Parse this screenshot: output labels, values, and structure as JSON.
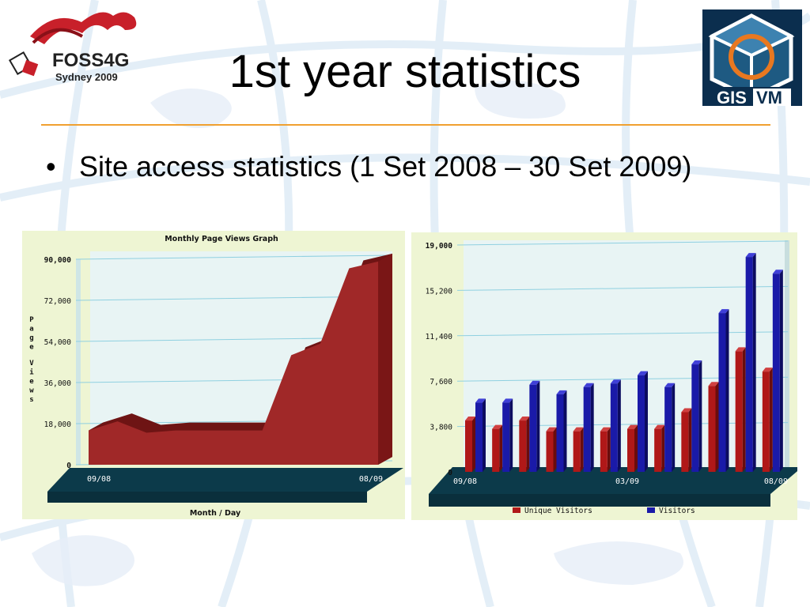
{
  "slide": {
    "title": "1st year statistics",
    "bullet": "Site access statistics (1 Set 2008 – 30 Set 2009)"
  },
  "logos": {
    "left": {
      "line1": "FOSS4G",
      "line2": "Sydney 2009"
    },
    "right": {
      "text1": "GIS",
      "text2": "VM"
    }
  },
  "colors": {
    "accent_rule": "#f0a030",
    "chart_bg": "#eef5d3",
    "plot_bg": "#e8f4f4",
    "floor": "#0c3a4a",
    "area_fill": "#a02828",
    "unique_color": "#b01818",
    "visitors_color": "#1a1aa8"
  },
  "chart_data": [
    {
      "type": "area",
      "title": "Monthly Page Views Graph",
      "xlabel": "Month / Day",
      "ylabel": "Page Views",
      "ylim": [
        0,
        90000
      ],
      "yticks": [
        "90,000",
        "72,000",
        "54,000",
        "36,000",
        "18,000",
        "0"
      ],
      "ytick_values": [
        90000,
        72000,
        54000,
        36000,
        18000,
        0
      ],
      "x_tick_labels": [
        "09/08",
        "08/09"
      ],
      "values": [
        15000,
        19000,
        14000,
        15000,
        15000,
        15000,
        15000,
        48000,
        53000,
        86000,
        89000
      ],
      "grid": true,
      "legend": "none"
    },
    {
      "type": "bar",
      "title": "",
      "ylim": [
        0,
        19000
      ],
      "yticks": [
        "19,000",
        "15,200",
        "11,400",
        "7,600",
        "3,800",
        "0"
      ],
      "ytick_values": [
        19000,
        15200,
        11400,
        7600,
        3800,
        0
      ],
      "x_tick_labels": [
        "09/08",
        "03/09",
        "08/09"
      ],
      "x_tick_positions": [
        0,
        6,
        12
      ],
      "series": [
        {
          "name": "Unique Visitors",
          "values": [
            4300,
            3600,
            4300,
            3400,
            3400,
            3400,
            3600,
            3600,
            5000,
            7200,
            10100,
            8400
          ]
        },
        {
          "name": "Visitors",
          "values": [
            5800,
            5800,
            7300,
            6500,
            7100,
            7400,
            8100,
            7100,
            9000,
            13300,
            18000,
            16600
          ]
        }
      ],
      "grid": true,
      "legend": "bottom"
    }
  ]
}
